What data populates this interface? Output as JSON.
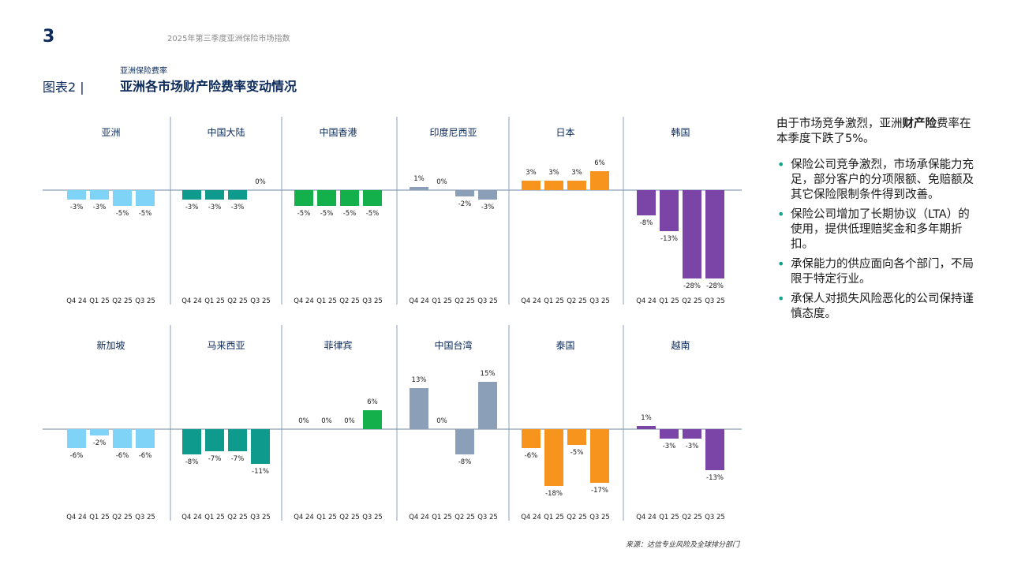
{
  "page_number": "3",
  "report_name": "2025年第三季度亚洲保险市场指数",
  "figure": {
    "label": "图表2 |",
    "subtitle": "亚洲保险费率",
    "title": "亚洲各市场财产险费率变动情况"
  },
  "chart_data": {
    "type": "bar",
    "ylim": [
      -30,
      20
    ],
    "categories": [
      "Q4 24",
      "Q1 25",
      "Q2 25",
      "Q3 25"
    ],
    "panels": [
      {
        "title": "亚洲",
        "color": "#7fd3f7",
        "values": [
          -3,
          -3,
          -5,
          -5
        ],
        "labels": [
          "-3%",
          "-3%",
          "-5%",
          "-5%"
        ]
      },
      {
        "title": "中国大陆",
        "color": "#0f9a8e",
        "values": [
          -3,
          -3,
          -3,
          0
        ],
        "labels": [
          "-3%",
          "-3%",
          "-3%",
          "0%"
        ]
      },
      {
        "title": "中国香港",
        "color": "#13b04b",
        "values": [
          -5,
          -5,
          -5,
          -5
        ],
        "labels": [
          "-5%",
          "-5%",
          "-5%",
          "-5%"
        ]
      },
      {
        "title": "印度尼西亚",
        "color": "#8c9fb8",
        "values": [
          1,
          0,
          -2,
          -3
        ],
        "labels": [
          "1%",
          "0%",
          "-2%",
          "-3%"
        ]
      },
      {
        "title": "日本",
        "color": "#f7941d",
        "values": [
          3,
          3,
          3,
          6
        ],
        "labels": [
          "3%",
          "3%",
          "3%",
          "6%"
        ]
      },
      {
        "title": "韩国",
        "color": "#7b45a8",
        "values": [
          -8,
          -13,
          -28,
          -28
        ],
        "labels": [
          "-8%",
          "-13%",
          "-28%",
          "-28%"
        ]
      },
      {
        "title": "新加坡",
        "color": "#7fd3f7",
        "values": [
          -6,
          -2,
          -6,
          -6
        ],
        "labels": [
          "-6%",
          "-2%",
          "-6%",
          "-6%"
        ]
      },
      {
        "title": "马来西亚",
        "color": "#0f9a8e",
        "values": [
          -8,
          -7,
          -7,
          -11
        ],
        "labels": [
          "-8%",
          "-7%",
          "-7%",
          "-11%"
        ]
      },
      {
        "title": "菲律宾",
        "color": "#13b04b",
        "values": [
          0,
          0,
          0,
          6
        ],
        "labels": [
          "0%",
          "0%",
          "0%",
          "6%"
        ]
      },
      {
        "title": "中国台湾",
        "color": "#8c9fb8",
        "values": [
          13,
          0,
          -8,
          15
        ],
        "labels": [
          "13%",
          "0%",
          "-8%",
          "15%"
        ]
      },
      {
        "title": "泰国",
        "color": "#f7941d",
        "values": [
          -6,
          -18,
          -5,
          -17
        ],
        "labels": [
          "-6%",
          "-18%",
          "-5%",
          "-17%"
        ]
      },
      {
        "title": "越南",
        "color": "#7b45a8",
        "values": [
          1,
          -3,
          -3,
          -13
        ],
        "labels": [
          "1%",
          "-3%",
          "-3%",
          "-13%"
        ]
      }
    ],
    "axis_color": "#8c9fb8"
  },
  "source": "来源：达信专业风险及全球排分部门",
  "side": {
    "lead_prefix": "由于市场竞争激烈，亚洲",
    "lead_bold": "财产险",
    "lead_suffix": "费率在本季度下跌了5%。",
    "bullets": [
      "保险公司竞争激烈，市场承保能力充足，部分客户的分项限额、免赔额及其它保险限制条件得到改善。",
      "保险公司增加了长期协议（LTA）的使用，提供低理赔奖金和多年期折扣。",
      "承保能力的供应面向各个部门，不局限于特定行业。",
      "承保人对损失风险恶化的公司保持谨慎态度。"
    ],
    "bullet_glyph": "•"
  }
}
